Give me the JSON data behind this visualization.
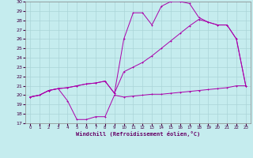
{
  "xlabel": "Windchill (Refroidissement éolien,°C)",
  "xlim": [
    -0.5,
    23.5
  ],
  "ylim": [
    17,
    30
  ],
  "xticks": [
    0,
    1,
    2,
    3,
    4,
    5,
    6,
    7,
    8,
    9,
    10,
    11,
    12,
    13,
    14,
    15,
    16,
    17,
    18,
    19,
    20,
    21,
    22,
    23
  ],
  "yticks": [
    17,
    18,
    19,
    20,
    21,
    22,
    23,
    24,
    25,
    26,
    27,
    28,
    29,
    30
  ],
  "bg_color": "#c5ecee",
  "grid_color": "#aad4d8",
  "line_color": "#aa00aa",
  "line1_y": [
    19.8,
    20.0,
    20.5,
    20.7,
    19.4,
    17.4,
    17.4,
    17.7,
    17.7,
    20.0,
    19.8,
    19.9,
    20.0,
    20.1,
    20.1,
    20.2,
    20.3,
    20.4,
    20.5,
    20.6,
    20.7,
    20.8,
    21.0,
    21.0
  ],
  "line2_y": [
    19.8,
    20.0,
    20.5,
    20.7,
    20.8,
    21.0,
    21.2,
    21.3,
    21.5,
    20.2,
    22.5,
    23.0,
    23.5,
    24.2,
    25.0,
    25.8,
    26.6,
    27.4,
    28.1,
    27.8,
    27.5,
    27.5,
    26.0,
    21.0
  ],
  "line3_y": [
    19.8,
    20.0,
    20.5,
    20.7,
    20.8,
    21.0,
    21.2,
    21.3,
    21.5,
    20.2,
    26.0,
    28.8,
    28.8,
    27.5,
    29.5,
    30.0,
    30.0,
    29.8,
    28.3,
    27.8,
    27.5,
    27.5,
    26.0,
    21.0
  ]
}
